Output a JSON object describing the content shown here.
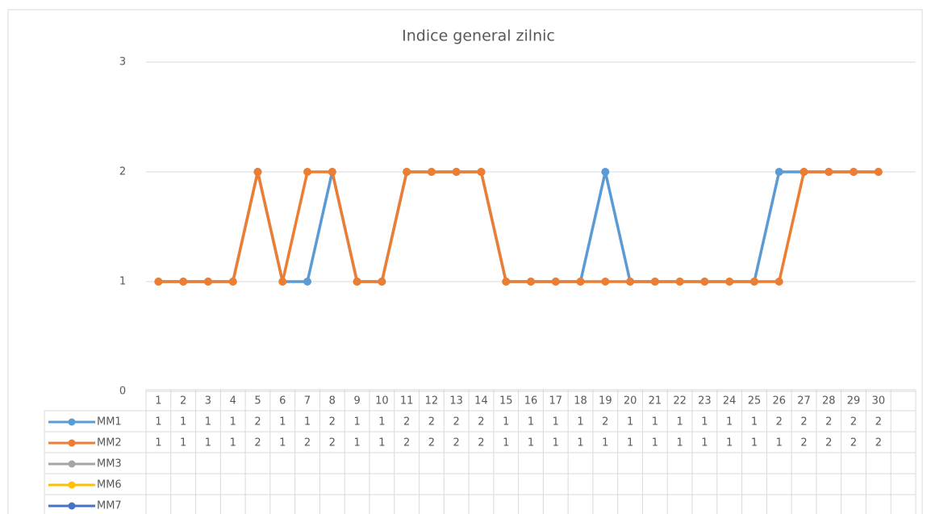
{
  "chart_data": {
    "type": "line",
    "title": "Indice general zilnic",
    "categories": [
      "1",
      "2",
      "3",
      "4",
      "5",
      "6",
      "7",
      "8",
      "9",
      "10",
      "11",
      "12",
      "13",
      "14",
      "15",
      "16",
      "17",
      "18",
      "19",
      "20",
      "21",
      "22",
      "23",
      "24",
      "25",
      "26",
      "27",
      "28",
      "29",
      "30",
      null
    ],
    "series": [
      {
        "name": "MM1",
        "color": "#5b9bd5",
        "values": [
          1,
          1,
          1,
          1,
          2,
          1,
          1,
          2,
          1,
          1,
          2,
          2,
          2,
          2,
          1,
          1,
          1,
          1,
          2,
          1,
          1,
          1,
          1,
          1,
          1,
          2,
          2,
          2,
          2,
          2,
          null
        ]
      },
      {
        "name": "MM2",
        "color": "#ed7d31",
        "values": [
          1,
          1,
          1,
          1,
          2,
          1,
          2,
          2,
          1,
          1,
          2,
          2,
          2,
          2,
          1,
          1,
          1,
          1,
          1,
          1,
          1,
          1,
          1,
          1,
          1,
          1,
          2,
          2,
          2,
          2,
          null
        ]
      },
      {
        "name": "MM3",
        "color": "#a5a5a5",
        "values": [
          null,
          null,
          null,
          null,
          null,
          null,
          null,
          null,
          null,
          null,
          null,
          null,
          null,
          null,
          null,
          null,
          null,
          null,
          null,
          null,
          null,
          null,
          null,
          null,
          null,
          null,
          null,
          null,
          null,
          null,
          null
        ]
      },
      {
        "name": "MM6",
        "color": "#ffc000",
        "values": [
          null,
          null,
          null,
          null,
          null,
          null,
          null,
          null,
          null,
          null,
          null,
          null,
          null,
          null,
          null,
          null,
          null,
          null,
          null,
          null,
          null,
          null,
          null,
          null,
          null,
          null,
          null,
          null,
          null,
          null,
          null
        ]
      },
      {
        "name": "MM7",
        "color": "#4472c4",
        "values": [
          null,
          null,
          null,
          null,
          null,
          null,
          null,
          null,
          null,
          null,
          null,
          null,
          null,
          null,
          null,
          null,
          null,
          null,
          null,
          null,
          null,
          null,
          null,
          null,
          null,
          null,
          null,
          null,
          null,
          null,
          null
        ]
      }
    ],
    "ylim": [
      0,
      3
    ],
    "yticks": [
      0,
      1,
      2,
      3
    ],
    "grid": true
  }
}
